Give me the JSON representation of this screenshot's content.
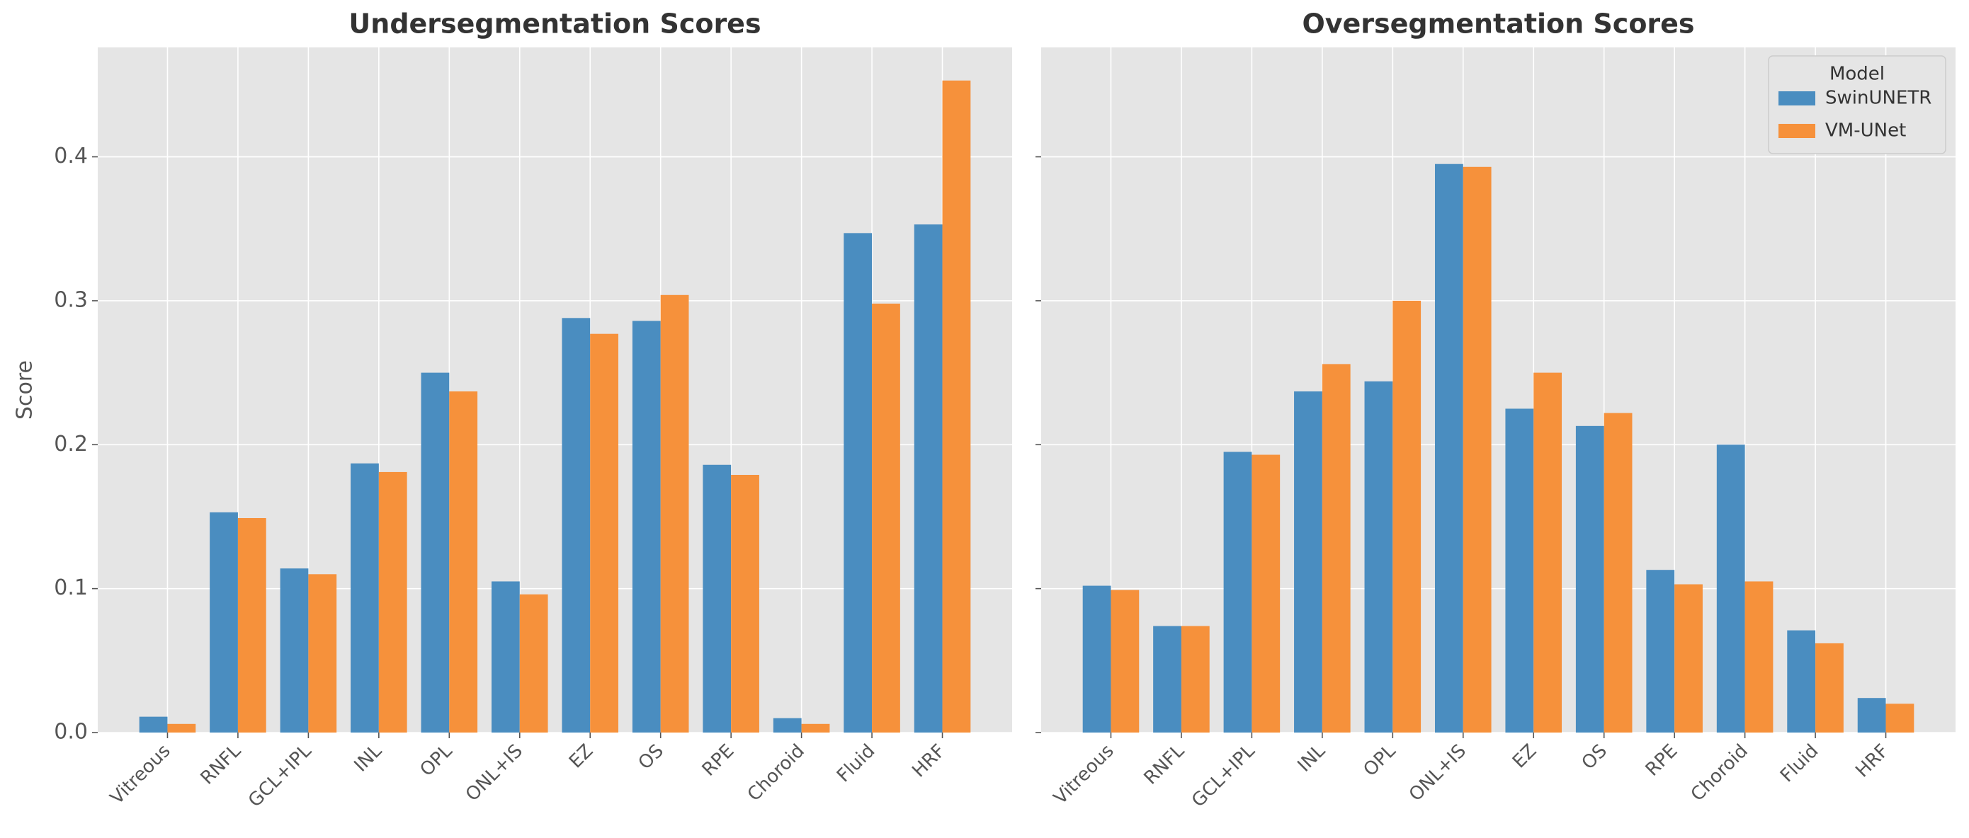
{
  "chart_data": [
    {
      "type": "bar",
      "title": "Undersegmentation Scores",
      "y_label": "Score",
      "categories": [
        "Vitreous",
        "RNFL",
        "GCL+IPL",
        "INL",
        "OPL",
        "ONL+IS",
        "EZ",
        "OS",
        "RPE",
        "Choroid",
        "Fluid",
        "HRF"
      ],
      "series": [
        {
          "name": "SwinUNETR",
          "color": "#4a8dc0",
          "values": [
            0.011,
            0.153,
            0.114,
            0.187,
            0.25,
            0.105,
            0.288,
            0.286,
            0.186,
            0.01,
            0.347,
            0.353
          ]
        },
        {
          "name": "VM-UNet",
          "color": "#f6913b",
          "values": [
            0.006,
            0.149,
            0.11,
            0.181,
            0.237,
            0.096,
            0.277,
            0.304,
            0.179,
            0.006,
            0.298,
            0.453
          ]
        }
      ],
      "ylim": [
        0,
        0.476
      ],
      "yticks": [
        {
          "value": 0,
          "label": "0.0"
        },
        0.1,
        0.2,
        0.3,
        0.4
      ],
      "grid": true
    },
    {
      "type": "bar",
      "title": "Oversegmentation Scores",
      "categories": [
        "Vitreous",
        "RNFL",
        "GCL+IPL",
        "INL",
        "OPL",
        "ONL+IS",
        "EZ",
        "OS",
        "RPE",
        "Choroid",
        "Fluid",
        "HRF"
      ],
      "series": [
        {
          "name": "SwinUNETR",
          "color": "#4a8dc0",
          "values": [
            0.102,
            0.074,
            0.195,
            0.237,
            0.244,
            0.395,
            0.225,
            0.213,
            0.113,
            0.2,
            0.071,
            0.024
          ]
        },
        {
          "name": "VM-UNet",
          "color": "#f6913b",
          "values": [
            0.099,
            0.074,
            0.193,
            0.256,
            0.3,
            0.393,
            0.25,
            0.222,
            0.103,
            0.105,
            0.062,
            0.02
          ]
        }
      ],
      "ylim": [
        0,
        0.476
      ],
      "yticks": [
        0,
        0.1,
        0.2,
        0.3,
        0.4
      ],
      "grid": true,
      "legend": {
        "title": "Model",
        "position": "upper right"
      }
    }
  ]
}
